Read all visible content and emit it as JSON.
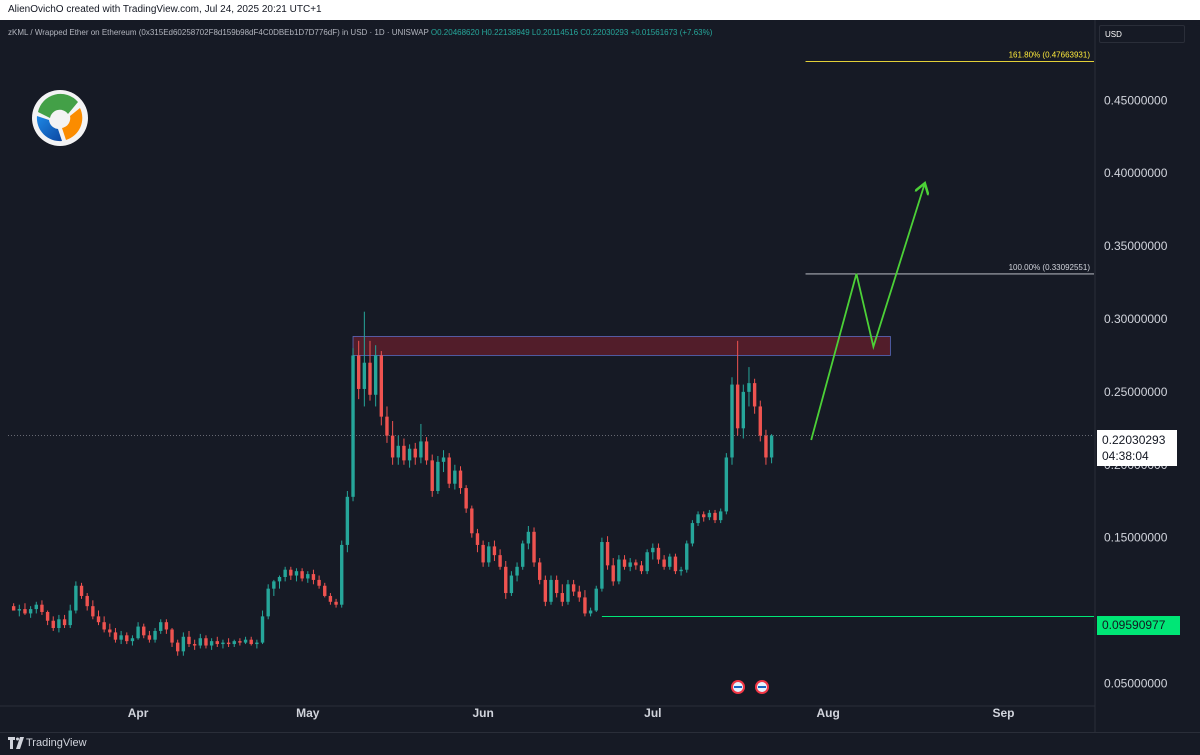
{
  "header": {
    "credit": "AlienOvichO created with TradingView.com, Jul 24, 2025 20:21 UTC+1"
  },
  "legend": {
    "symbol": "zKML / Wrapped Ether on Ethereum (0x315Ed60258702F8d159b98dF4C0DBEb1D7D776dF) in USD · 1D · UNISWAP",
    "open": "O0.20468620",
    "high": "H0.22138949",
    "low": "L0.20114516",
    "close": "C0.22030293",
    "change": "+0.01561673 (+7.63%)"
  },
  "price_axis": {
    "currency": "USD"
  },
  "current_price": {
    "value": "0.22030293",
    "countdown": "04:38:04",
    "color": "#ffffff"
  },
  "support_price": {
    "value": "0.09590977",
    "color": "#00e676"
  },
  "footer": {
    "brand": "TradingView"
  },
  "colors": {
    "up": "#26a69a",
    "down": "#ef5350",
    "background": "#161a25",
    "fib": "#ffeb3b",
    "arrow": "#4cd137",
    "zone": "#5d1e2b"
  },
  "chart_data": {
    "type": "candlestick",
    "x_axis": {
      "type": "date",
      "tick_labels": [
        "Apr",
        "May",
        "Jun",
        "Jul",
        "Aug",
        "Sep"
      ],
      "range": [
        "2025-03-09",
        "2025-09-17"
      ]
    },
    "y_axis": {
      "ticks": [
        0.05,
        0.15,
        0.2,
        0.25,
        0.3,
        0.35,
        0.4,
        0.45
      ],
      "tick_labels": [
        "0.05000000",
        "0.15000000",
        "0.20000000",
        "0.25000000",
        "0.30000000",
        "0.35000000",
        "0.40000000",
        "0.45000000"
      ],
      "range": [
        0.04,
        0.49
      ]
    },
    "fib_levels": [
      {
        "label": "161.80% (0.47663931)",
        "value": 0.47663931,
        "from": "2025-07-28",
        "to": "2025-09-17"
      },
      {
        "label": "100.00% (0.33092551)",
        "value": 0.33092551,
        "from": "2025-07-28",
        "to": "2025-09-17"
      }
    ],
    "resistance_zone": {
      "from": "2025-05-09",
      "to": "2025-08-12",
      "low": 0.275,
      "high": 0.288
    },
    "support_line": {
      "value": 0.09590977,
      "from": "2025-06-22"
    },
    "projection_path": [
      {
        "date": "2025-07-29",
        "price": 0.217
      },
      {
        "date": "2025-08-06",
        "price": 0.331
      },
      {
        "date": "2025-08-09",
        "price": 0.281
      },
      {
        "date": "2025-08-18",
        "price": 0.392
      }
    ],
    "candles": [
      {
        "date": "2025-03-10",
        "o": 0.103,
        "h": 0.105,
        "l": 0.1,
        "c": 0.1
      },
      {
        "date": "2025-03-11",
        "o": 0.1,
        "h": 0.104,
        "l": 0.096,
        "c": 0.101
      },
      {
        "date": "2025-03-12",
        "o": 0.101,
        "h": 0.105,
        "l": 0.097,
        "c": 0.098
      },
      {
        "date": "2025-03-13",
        "o": 0.098,
        "h": 0.103,
        "l": 0.095,
        "c": 0.101
      },
      {
        "date": "2025-03-14",
        "o": 0.101,
        "h": 0.106,
        "l": 0.098,
        "c": 0.104
      },
      {
        "date": "2025-03-15",
        "o": 0.104,
        "h": 0.107,
        "l": 0.097,
        "c": 0.099
      },
      {
        "date": "2025-03-16",
        "o": 0.099,
        "h": 0.1,
        "l": 0.09,
        "c": 0.093
      },
      {
        "date": "2025-03-17",
        "o": 0.093,
        "h": 0.096,
        "l": 0.086,
        "c": 0.088
      },
      {
        "date": "2025-03-18",
        "o": 0.088,
        "h": 0.097,
        "l": 0.085,
        "c": 0.094
      },
      {
        "date": "2025-03-19",
        "o": 0.094,
        "h": 0.097,
        "l": 0.088,
        "c": 0.09
      },
      {
        "date": "2025-03-20",
        "o": 0.09,
        "h": 0.104,
        "l": 0.088,
        "c": 0.1
      },
      {
        "date": "2025-03-21",
        "o": 0.1,
        "h": 0.12,
        "l": 0.098,
        "c": 0.117
      },
      {
        "date": "2025-03-22",
        "o": 0.117,
        "h": 0.119,
        "l": 0.108,
        "c": 0.11
      },
      {
        "date": "2025-03-23",
        "o": 0.11,
        "h": 0.112,
        "l": 0.1,
        "c": 0.103
      },
      {
        "date": "2025-03-24",
        "o": 0.103,
        "h": 0.107,
        "l": 0.094,
        "c": 0.096
      },
      {
        "date": "2025-03-25",
        "o": 0.096,
        "h": 0.1,
        "l": 0.09,
        "c": 0.092
      },
      {
        "date": "2025-03-26",
        "o": 0.092,
        "h": 0.096,
        "l": 0.085,
        "c": 0.087
      },
      {
        "date": "2025-03-27",
        "o": 0.087,
        "h": 0.091,
        "l": 0.082,
        "c": 0.085
      },
      {
        "date": "2025-03-28",
        "o": 0.085,
        "h": 0.088,
        "l": 0.078,
        "c": 0.08
      },
      {
        "date": "2025-03-29",
        "o": 0.08,
        "h": 0.086,
        "l": 0.077,
        "c": 0.083
      },
      {
        "date": "2025-03-30",
        "o": 0.083,
        "h": 0.085,
        "l": 0.077,
        "c": 0.079
      },
      {
        "date": "2025-03-31",
        "o": 0.079,
        "h": 0.083,
        "l": 0.076,
        "c": 0.081
      },
      {
        "date": "2025-04-01",
        "o": 0.081,
        "h": 0.092,
        "l": 0.08,
        "c": 0.089
      },
      {
        "date": "2025-04-02",
        "o": 0.089,
        "h": 0.091,
        "l": 0.081,
        "c": 0.083
      },
      {
        "date": "2025-04-03",
        "o": 0.083,
        "h": 0.086,
        "l": 0.078,
        "c": 0.08
      },
      {
        "date": "2025-04-04",
        "o": 0.08,
        "h": 0.088,
        "l": 0.078,
        "c": 0.086
      },
      {
        "date": "2025-04-05",
        "o": 0.086,
        "h": 0.094,
        "l": 0.084,
        "c": 0.092
      },
      {
        "date": "2025-04-06",
        "o": 0.092,
        "h": 0.094,
        "l": 0.084,
        "c": 0.087
      },
      {
        "date": "2025-04-07",
        "o": 0.087,
        "h": 0.088,
        "l": 0.075,
        "c": 0.078
      },
      {
        "date": "2025-04-08",
        "o": 0.078,
        "h": 0.08,
        "l": 0.069,
        "c": 0.072
      },
      {
        "date": "2025-04-09",
        "o": 0.072,
        "h": 0.085,
        "l": 0.069,
        "c": 0.082
      },
      {
        "date": "2025-04-10",
        "o": 0.082,
        "h": 0.086,
        "l": 0.075,
        "c": 0.077
      },
      {
        "date": "2025-04-11",
        "o": 0.077,
        "h": 0.08,
        "l": 0.073,
        "c": 0.076
      },
      {
        "date": "2025-04-12",
        "o": 0.076,
        "h": 0.084,
        "l": 0.074,
        "c": 0.081
      },
      {
        "date": "2025-04-13",
        "o": 0.081,
        "h": 0.083,
        "l": 0.074,
        "c": 0.076
      },
      {
        "date": "2025-04-14",
        "o": 0.076,
        "h": 0.081,
        "l": 0.073,
        "c": 0.079
      },
      {
        "date": "2025-04-15",
        "o": 0.079,
        "h": 0.082,
        "l": 0.075,
        "c": 0.077
      },
      {
        "date": "2025-04-16",
        "o": 0.077,
        "h": 0.08,
        "l": 0.074,
        "c": 0.078
      },
      {
        "date": "2025-04-17",
        "o": 0.078,
        "h": 0.081,
        "l": 0.075,
        "c": 0.077
      },
      {
        "date": "2025-04-18",
        "o": 0.077,
        "h": 0.08,
        "l": 0.075,
        "c": 0.079
      },
      {
        "date": "2025-04-19",
        "o": 0.079,
        "h": 0.081,
        "l": 0.076,
        "c": 0.078
      },
      {
        "date": "2025-04-20",
        "o": 0.078,
        "h": 0.082,
        "l": 0.077,
        "c": 0.08
      },
      {
        "date": "2025-04-21",
        "o": 0.08,
        "h": 0.082,
        "l": 0.076,
        "c": 0.077
      },
      {
        "date": "2025-04-22",
        "o": 0.077,
        "h": 0.08,
        "l": 0.074,
        "c": 0.078
      },
      {
        "date": "2025-04-23",
        "o": 0.078,
        "h": 0.1,
        "l": 0.077,
        "c": 0.096
      },
      {
        "date": "2025-04-24",
        "o": 0.096,
        "h": 0.118,
        "l": 0.094,
        "c": 0.115
      },
      {
        "date": "2025-04-25",
        "o": 0.115,
        "h": 0.121,
        "l": 0.11,
        "c": 0.12
      },
      {
        "date": "2025-04-26",
        "o": 0.12,
        "h": 0.124,
        "l": 0.115,
        "c": 0.123
      },
      {
        "date": "2025-04-27",
        "o": 0.123,
        "h": 0.13,
        "l": 0.12,
        "c": 0.128
      },
      {
        "date": "2025-04-28",
        "o": 0.128,
        "h": 0.13,
        "l": 0.121,
        "c": 0.124
      },
      {
        "date": "2025-04-29",
        "o": 0.124,
        "h": 0.129,
        "l": 0.12,
        "c": 0.127
      },
      {
        "date": "2025-04-30",
        "o": 0.127,
        "h": 0.129,
        "l": 0.12,
        "c": 0.122
      },
      {
        "date": "2025-05-01",
        "o": 0.122,
        "h": 0.127,
        "l": 0.119,
        "c": 0.125
      },
      {
        "date": "2025-05-02",
        "o": 0.125,
        "h": 0.128,
        "l": 0.118,
        "c": 0.121
      },
      {
        "date": "2025-05-03",
        "o": 0.121,
        "h": 0.124,
        "l": 0.115,
        "c": 0.117
      },
      {
        "date": "2025-05-04",
        "o": 0.117,
        "h": 0.119,
        "l": 0.109,
        "c": 0.11
      },
      {
        "date": "2025-05-05",
        "o": 0.11,
        "h": 0.112,
        "l": 0.104,
        "c": 0.106
      },
      {
        "date": "2025-05-06",
        "o": 0.106,
        "h": 0.108,
        "l": 0.102,
        "c": 0.104
      },
      {
        "date": "2025-05-07",
        "o": 0.104,
        "h": 0.148,
        "l": 0.102,
        "c": 0.145
      },
      {
        "date": "2025-05-08",
        "o": 0.145,
        "h": 0.182,
        "l": 0.14,
        "c": 0.178
      },
      {
        "date": "2025-05-09",
        "o": 0.178,
        "h": 0.28,
        "l": 0.175,
        "c": 0.275
      },
      {
        "date": "2025-05-10",
        "o": 0.275,
        "h": 0.285,
        "l": 0.245,
        "c": 0.252
      },
      {
        "date": "2025-05-11",
        "o": 0.252,
        "h": 0.305,
        "l": 0.24,
        "c": 0.27
      },
      {
        "date": "2025-05-12",
        "o": 0.27,
        "h": 0.285,
        "l": 0.244,
        "c": 0.248
      },
      {
        "date": "2025-05-13",
        "o": 0.248,
        "h": 0.282,
        "l": 0.24,
        "c": 0.275
      },
      {
        "date": "2025-05-14",
        "o": 0.275,
        "h": 0.278,
        "l": 0.227,
        "c": 0.233
      },
      {
        "date": "2025-05-15",
        "o": 0.233,
        "h": 0.24,
        "l": 0.215,
        "c": 0.22
      },
      {
        "date": "2025-05-16",
        "o": 0.22,
        "h": 0.23,
        "l": 0.2,
        "c": 0.205
      },
      {
        "date": "2025-05-17",
        "o": 0.205,
        "h": 0.22,
        "l": 0.2,
        "c": 0.213
      },
      {
        "date": "2025-05-18",
        "o": 0.213,
        "h": 0.218,
        "l": 0.2,
        "c": 0.203
      },
      {
        "date": "2025-05-19",
        "o": 0.203,
        "h": 0.214,
        "l": 0.198,
        "c": 0.211
      },
      {
        "date": "2025-05-20",
        "o": 0.211,
        "h": 0.215,
        "l": 0.2,
        "c": 0.205
      },
      {
        "date": "2025-05-21",
        "o": 0.205,
        "h": 0.228,
        "l": 0.201,
        "c": 0.216
      },
      {
        "date": "2025-05-22",
        "o": 0.216,
        "h": 0.219,
        "l": 0.2,
        "c": 0.203
      },
      {
        "date": "2025-05-23",
        "o": 0.203,
        "h": 0.207,
        "l": 0.178,
        "c": 0.182
      },
      {
        "date": "2025-05-24",
        "o": 0.182,
        "h": 0.206,
        "l": 0.18,
        "c": 0.202
      },
      {
        "date": "2025-05-25",
        "o": 0.202,
        "h": 0.21,
        "l": 0.195,
        "c": 0.205
      },
      {
        "date": "2025-05-26",
        "o": 0.205,
        "h": 0.208,
        "l": 0.184,
        "c": 0.187
      },
      {
        "date": "2025-05-27",
        "o": 0.187,
        "h": 0.2,
        "l": 0.183,
        "c": 0.196
      },
      {
        "date": "2025-05-28",
        "o": 0.196,
        "h": 0.199,
        "l": 0.18,
        "c": 0.184
      },
      {
        "date": "2025-05-29",
        "o": 0.184,
        "h": 0.186,
        "l": 0.167,
        "c": 0.17
      },
      {
        "date": "2025-05-30",
        "o": 0.17,
        "h": 0.172,
        "l": 0.15,
        "c": 0.153
      },
      {
        "date": "2025-05-31",
        "o": 0.153,
        "h": 0.156,
        "l": 0.14,
        "c": 0.145
      },
      {
        "date": "2025-06-01",
        "o": 0.145,
        "h": 0.148,
        "l": 0.13,
        "c": 0.133
      },
      {
        "date": "2025-06-02",
        "o": 0.133,
        "h": 0.147,
        "l": 0.13,
        "c": 0.144
      },
      {
        "date": "2025-06-03",
        "o": 0.144,
        "h": 0.148,
        "l": 0.134,
        "c": 0.138
      },
      {
        "date": "2025-06-04",
        "o": 0.138,
        "h": 0.142,
        "l": 0.128,
        "c": 0.13
      },
      {
        "date": "2025-06-05",
        "o": 0.13,
        "h": 0.134,
        "l": 0.108,
        "c": 0.112
      },
      {
        "date": "2025-06-06",
        "o": 0.112,
        "h": 0.127,
        "l": 0.11,
        "c": 0.124
      },
      {
        "date": "2025-06-07",
        "o": 0.124,
        "h": 0.133,
        "l": 0.12,
        "c": 0.13
      },
      {
        "date": "2025-06-08",
        "o": 0.13,
        "h": 0.148,
        "l": 0.128,
        "c": 0.146
      },
      {
        "date": "2025-06-09",
        "o": 0.146,
        "h": 0.158,
        "l": 0.142,
        "c": 0.154
      },
      {
        "date": "2025-06-10",
        "o": 0.154,
        "h": 0.157,
        "l": 0.13,
        "c": 0.133
      },
      {
        "date": "2025-06-11",
        "o": 0.133,
        "h": 0.136,
        "l": 0.118,
        "c": 0.121
      },
      {
        "date": "2025-06-12",
        "o": 0.121,
        "h": 0.124,
        "l": 0.103,
        "c": 0.106
      },
      {
        "date": "2025-06-13",
        "o": 0.106,
        "h": 0.124,
        "l": 0.104,
        "c": 0.121
      },
      {
        "date": "2025-06-14",
        "o": 0.121,
        "h": 0.124,
        "l": 0.109,
        "c": 0.112
      },
      {
        "date": "2025-06-15",
        "o": 0.112,
        "h": 0.118,
        "l": 0.103,
        "c": 0.106
      },
      {
        "date": "2025-06-16",
        "o": 0.106,
        "h": 0.121,
        "l": 0.104,
        "c": 0.118
      },
      {
        "date": "2025-06-17",
        "o": 0.118,
        "h": 0.121,
        "l": 0.11,
        "c": 0.113
      },
      {
        "date": "2025-06-18",
        "o": 0.113,
        "h": 0.117,
        "l": 0.106,
        "c": 0.109
      },
      {
        "date": "2025-06-19",
        "o": 0.109,
        "h": 0.114,
        "l": 0.096,
        "c": 0.098
      },
      {
        "date": "2025-06-20",
        "o": 0.098,
        "h": 0.102,
        "l": 0.096,
        "c": 0.1
      },
      {
        "date": "2025-06-21",
        "o": 0.1,
        "h": 0.117,
        "l": 0.099,
        "c": 0.115
      },
      {
        "date": "2025-06-22",
        "o": 0.115,
        "h": 0.15,
        "l": 0.113,
        "c": 0.147
      },
      {
        "date": "2025-06-23",
        "o": 0.147,
        "h": 0.151,
        "l": 0.128,
        "c": 0.131
      },
      {
        "date": "2025-06-24",
        "o": 0.131,
        "h": 0.136,
        "l": 0.117,
        "c": 0.12
      },
      {
        "date": "2025-06-25",
        "o": 0.12,
        "h": 0.138,
        "l": 0.118,
        "c": 0.135
      },
      {
        "date": "2025-06-26",
        "o": 0.135,
        "h": 0.138,
        "l": 0.128,
        "c": 0.13
      },
      {
        "date": "2025-06-27",
        "o": 0.13,
        "h": 0.136,
        "l": 0.127,
        "c": 0.133
      },
      {
        "date": "2025-06-28",
        "o": 0.133,
        "h": 0.135,
        "l": 0.128,
        "c": 0.131
      },
      {
        "date": "2025-06-29",
        "o": 0.131,
        "h": 0.134,
        "l": 0.125,
        "c": 0.127
      },
      {
        "date": "2025-06-30",
        "o": 0.127,
        "h": 0.142,
        "l": 0.125,
        "c": 0.14
      },
      {
        "date": "2025-07-01",
        "o": 0.14,
        "h": 0.146,
        "l": 0.135,
        "c": 0.143
      },
      {
        "date": "2025-07-02",
        "o": 0.143,
        "h": 0.146,
        "l": 0.132,
        "c": 0.135
      },
      {
        "date": "2025-07-03",
        "o": 0.135,
        "h": 0.138,
        "l": 0.128,
        "c": 0.13
      },
      {
        "date": "2025-07-04",
        "o": 0.13,
        "h": 0.139,
        "l": 0.128,
        "c": 0.137
      },
      {
        "date": "2025-07-05",
        "o": 0.137,
        "h": 0.139,
        "l": 0.125,
        "c": 0.127
      },
      {
        "date": "2025-07-06",
        "o": 0.127,
        "h": 0.13,
        "l": 0.124,
        "c": 0.128
      },
      {
        "date": "2025-07-07",
        "o": 0.128,
        "h": 0.148,
        "l": 0.126,
        "c": 0.146
      },
      {
        "date": "2025-07-08",
        "o": 0.146,
        "h": 0.162,
        "l": 0.144,
        "c": 0.16
      },
      {
        "date": "2025-07-09",
        "o": 0.16,
        "h": 0.168,
        "l": 0.158,
        "c": 0.166
      },
      {
        "date": "2025-07-10",
        "o": 0.166,
        "h": 0.168,
        "l": 0.161,
        "c": 0.164
      },
      {
        "date": "2025-07-11",
        "o": 0.164,
        "h": 0.169,
        "l": 0.162,
        "c": 0.167
      },
      {
        "date": "2025-07-12",
        "o": 0.167,
        "h": 0.169,
        "l": 0.16,
        "c": 0.162
      },
      {
        "date": "2025-07-13",
        "o": 0.162,
        "h": 0.17,
        "l": 0.16,
        "c": 0.168
      },
      {
        "date": "2025-07-14",
        "o": 0.168,
        "h": 0.208,
        "l": 0.166,
        "c": 0.205
      },
      {
        "date": "2025-07-15",
        "o": 0.205,
        "h": 0.26,
        "l": 0.2,
        "c": 0.255
      },
      {
        "date": "2025-07-16",
        "o": 0.255,
        "h": 0.285,
        "l": 0.22,
        "c": 0.225
      },
      {
        "date": "2025-07-17",
        "o": 0.225,
        "h": 0.255,
        "l": 0.218,
        "c": 0.25
      },
      {
        "date": "2025-07-18",
        "o": 0.25,
        "h": 0.267,
        "l": 0.24,
        "c": 0.256
      },
      {
        "date": "2025-07-19",
        "o": 0.256,
        "h": 0.259,
        "l": 0.235,
        "c": 0.24
      },
      {
        "date": "2025-07-20",
        "o": 0.24,
        "h": 0.244,
        "l": 0.216,
        "c": 0.22
      },
      {
        "date": "2025-07-21",
        "o": 0.22,
        "h": 0.224,
        "l": 0.2,
        "c": 0.205
      },
      {
        "date": "2025-07-22",
        "o": 0.205,
        "h": 0.221,
        "l": 0.201,
        "c": 0.22
      }
    ]
  }
}
